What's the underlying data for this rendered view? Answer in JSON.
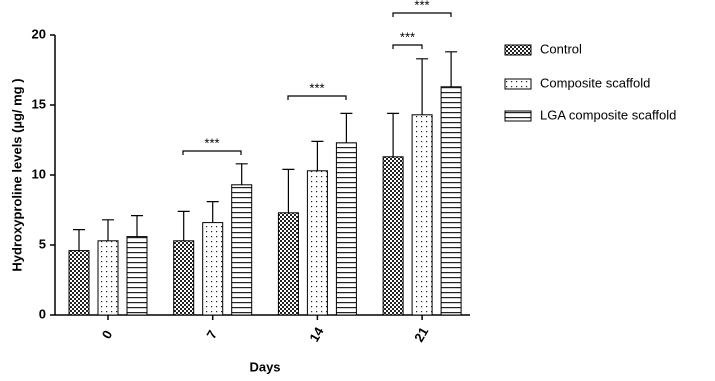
{
  "chart_data": {
    "type": "bar",
    "x_label": "Days",
    "y_label": "Hydroxyproline levels (µg/ mg )",
    "categories": [
      "0",
      "7",
      "14",
      "21"
    ],
    "series": [
      {
        "name": "Control",
        "pattern": "checker",
        "values": [
          4.6,
          5.3,
          7.3,
          11.3
        ],
        "errors": [
          1.5,
          2.1,
          3.1,
          3.1
        ]
      },
      {
        "name": "Composite scaffold",
        "pattern": "dots",
        "values": [
          5.3,
          6.6,
          10.3,
          14.3
        ],
        "errors": [
          1.5,
          1.5,
          2.1,
          4.0
        ]
      },
      {
        "name": "LGA composite scaffold",
        "pattern": "hlines",
        "values": [
          5.6,
          9.3,
          12.3,
          16.3
        ],
        "errors": [
          1.5,
          1.5,
          2.1,
          2.5
        ]
      }
    ],
    "annotations": [
      "***",
      "***",
      "***",
      "***"
    ],
    "ylim": [
      0,
      20
    ],
    "yticks": [
      0,
      5,
      10,
      15,
      20
    ],
    "legend": "right"
  }
}
